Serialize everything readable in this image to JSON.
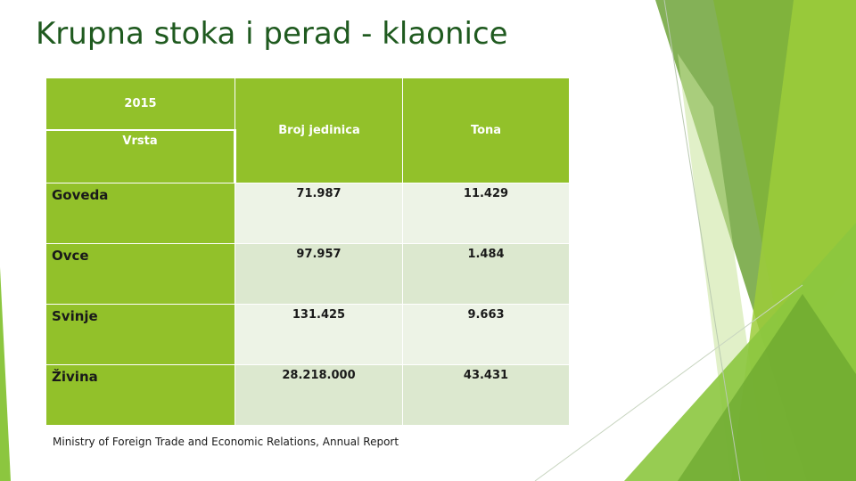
{
  "slide": {
    "title": "Krupna stoka i perad - klaonice",
    "source": "Ministry of Foreign Trade and Economic Relations, Annual Report"
  },
  "table": {
    "year": "2015",
    "row_header": "Vrsta",
    "columns": [
      "Broj jedinica",
      "Tona"
    ],
    "rows": [
      {
        "label": "Goveda",
        "units": "71.987",
        "tons": "11.429"
      },
      {
        "label": "Ovce",
        "units": "97.957",
        "tons": "1.484"
      },
      {
        "label": "Svinje",
        "units": "131.425",
        "tons": "9.663"
      },
      {
        "label": "Živina",
        "units": "28.218.000",
        "tons": "43.431"
      }
    ]
  },
  "colors": {
    "title": "#1f5a1f",
    "header_green": "#92c12a",
    "row_light": "#edf3e6",
    "row_dark": "#dce8cf"
  }
}
